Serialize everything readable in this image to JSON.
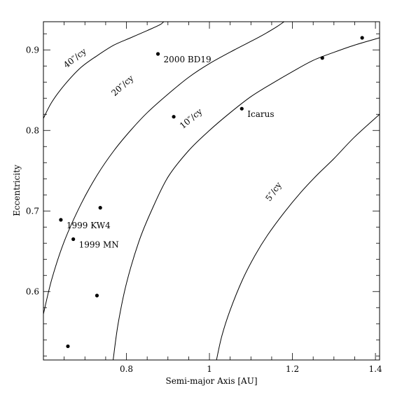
{
  "chart_data": {
    "type": "scatter",
    "title": "",
    "xlabel": "Semi-major Axis [AU]",
    "ylabel": "Eccentricity",
    "xlim": [
      0.6,
      1.41
    ],
    "ylim": [
      0.515,
      0.935
    ],
    "grid": false,
    "x_ticks": [
      0.8,
      1,
      1.2,
      1.4
    ],
    "x_tick_labels": [
      "0.8",
      "1",
      "1.2",
      "1.4"
    ],
    "y_ticks": [
      0.6,
      0.7,
      0.8,
      0.9
    ],
    "y_tick_labels": [
      "0.6",
      "0.7",
      "0.8",
      "0.9"
    ],
    "points": [
      {
        "x": 0.642,
        "y": 0.689,
        "label": "1999 KW4"
      },
      {
        "x": 0.672,
        "y": 0.665,
        "label": "1999 MN"
      },
      {
        "x": 0.737,
        "y": 0.704,
        "label": ""
      },
      {
        "x": 0.729,
        "y": 0.595,
        "label": ""
      },
      {
        "x": 0.659,
        "y": 0.532,
        "label": ""
      },
      {
        "x": 0.876,
        "y": 0.895,
        "label": "2000 BD19"
      },
      {
        "x": 0.914,
        "y": 0.817,
        "label": ""
      },
      {
        "x": 1.078,
        "y": 0.827,
        "label": "Icarus"
      },
      {
        "x": 1.272,
        "y": 0.89,
        "label": ""
      },
      {
        "x": 1.368,
        "y": 0.915,
        "label": ""
      }
    ],
    "curves": [
      {
        "label": "40″/cy",
        "x": [
          0.6,
          0.62,
          0.65,
          0.69,
          0.73,
          0.77,
          0.81,
          0.85,
          0.88,
          0.89
        ],
        "y": [
          0.815,
          0.835,
          0.856,
          0.878,
          0.893,
          0.906,
          0.915,
          0.924,
          0.931,
          0.935
        ]
      },
      {
        "label": "20″/cy",
        "x": [
          0.6,
          0.62,
          0.65,
          0.69,
          0.73,
          0.77,
          0.81,
          0.85,
          0.9,
          0.95,
          1.0,
          1.06,
          1.12,
          1.16,
          1.18
        ],
        "y": [
          0.572,
          0.615,
          0.662,
          0.708,
          0.745,
          0.775,
          0.8,
          0.822,
          0.845,
          0.866,
          0.883,
          0.9,
          0.916,
          0.928,
          0.935
        ]
      },
      {
        "label": "10″/cy",
        "x": [
          0.768,
          0.78,
          0.8,
          0.83,
          0.86,
          0.9,
          0.95,
          1.0,
          1.05,
          1.1,
          1.15,
          1.2,
          1.25,
          1.3,
          1.35,
          1.41
        ],
        "y": [
          0.515,
          0.56,
          0.61,
          0.662,
          0.7,
          0.742,
          0.775,
          0.8,
          0.822,
          0.842,
          0.858,
          0.873,
          0.887,
          0.897,
          0.906,
          0.915
        ]
      },
      {
        "label": "5″/cy",
        "x": [
          1.017,
          1.03,
          1.05,
          1.08,
          1.11,
          1.14,
          1.18,
          1.22,
          1.26,
          1.3,
          1.35,
          1.41
        ],
        "y": [
          0.515,
          0.545,
          0.577,
          0.615,
          0.645,
          0.67,
          0.698,
          0.723,
          0.745,
          0.765,
          0.792,
          0.82
        ]
      }
    ]
  }
}
